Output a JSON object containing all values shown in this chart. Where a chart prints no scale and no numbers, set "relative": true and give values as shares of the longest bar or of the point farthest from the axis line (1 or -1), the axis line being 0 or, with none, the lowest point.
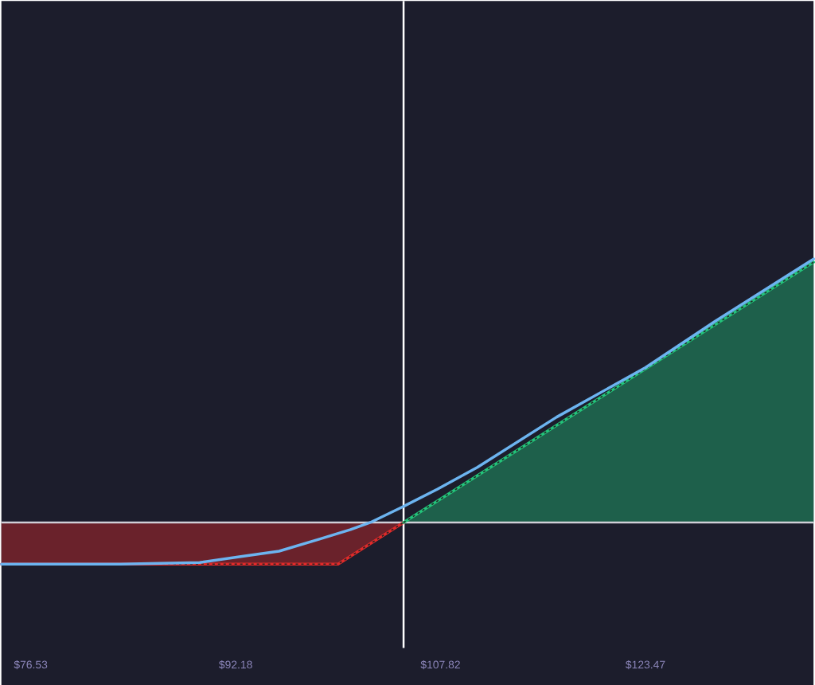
{
  "chart_data": {
    "type": "line",
    "relative": true,
    "xlim": [
      74.29,
      136.31
    ],
    "xticks": [
      {
        "value": 76.53,
        "label": "$76.53"
      },
      {
        "value": 92.18,
        "label": "$92.18"
      },
      {
        "value": 107.82,
        "label": "$107.82"
      },
      {
        "value": 123.47,
        "label": "$123.47"
      }
    ],
    "tick_labels": "x",
    "series": [
      {
        "type": "area",
        "color": "#e02a2a",
        "line_style": "dotted",
        "x": [
          74.29,
          100.0,
          105.0
        ],
        "values": [
          -0.158,
          -0.158,
          0
        ]
      },
      {
        "type": "area",
        "color": "#22c47a",
        "line_style": "dotted",
        "x": [
          105.0,
          136.31
        ],
        "values": [
          0,
          0.988
        ]
      },
      {
        "color": "#6cb4f0",
        "line_style": "solid",
        "x": [
          74.29,
          83.37,
          89.43,
          92.46,
          95.49,
          98.52,
          100.95,
          102.46,
          105.0,
          107.6,
          110.63,
          116.69,
          123.47,
          128.8,
          136.31
        ],
        "values": [
          -0.158,
          -0.158,
          -0.152,
          -0.13,
          -0.109,
          -0.064,
          -0.027,
          0,
          0.061,
          0.127,
          0.209,
          0.4,
          0.588,
          0.764,
          1.0
        ]
      }
    ],
    "ref_lines": [
      {
        "axis": "y",
        "value": 0,
        "color": "#d0d0d8"
      },
      {
        "axis": "x",
        "value": 105.0,
        "color": "#ffffff"
      }
    ]
  }
}
